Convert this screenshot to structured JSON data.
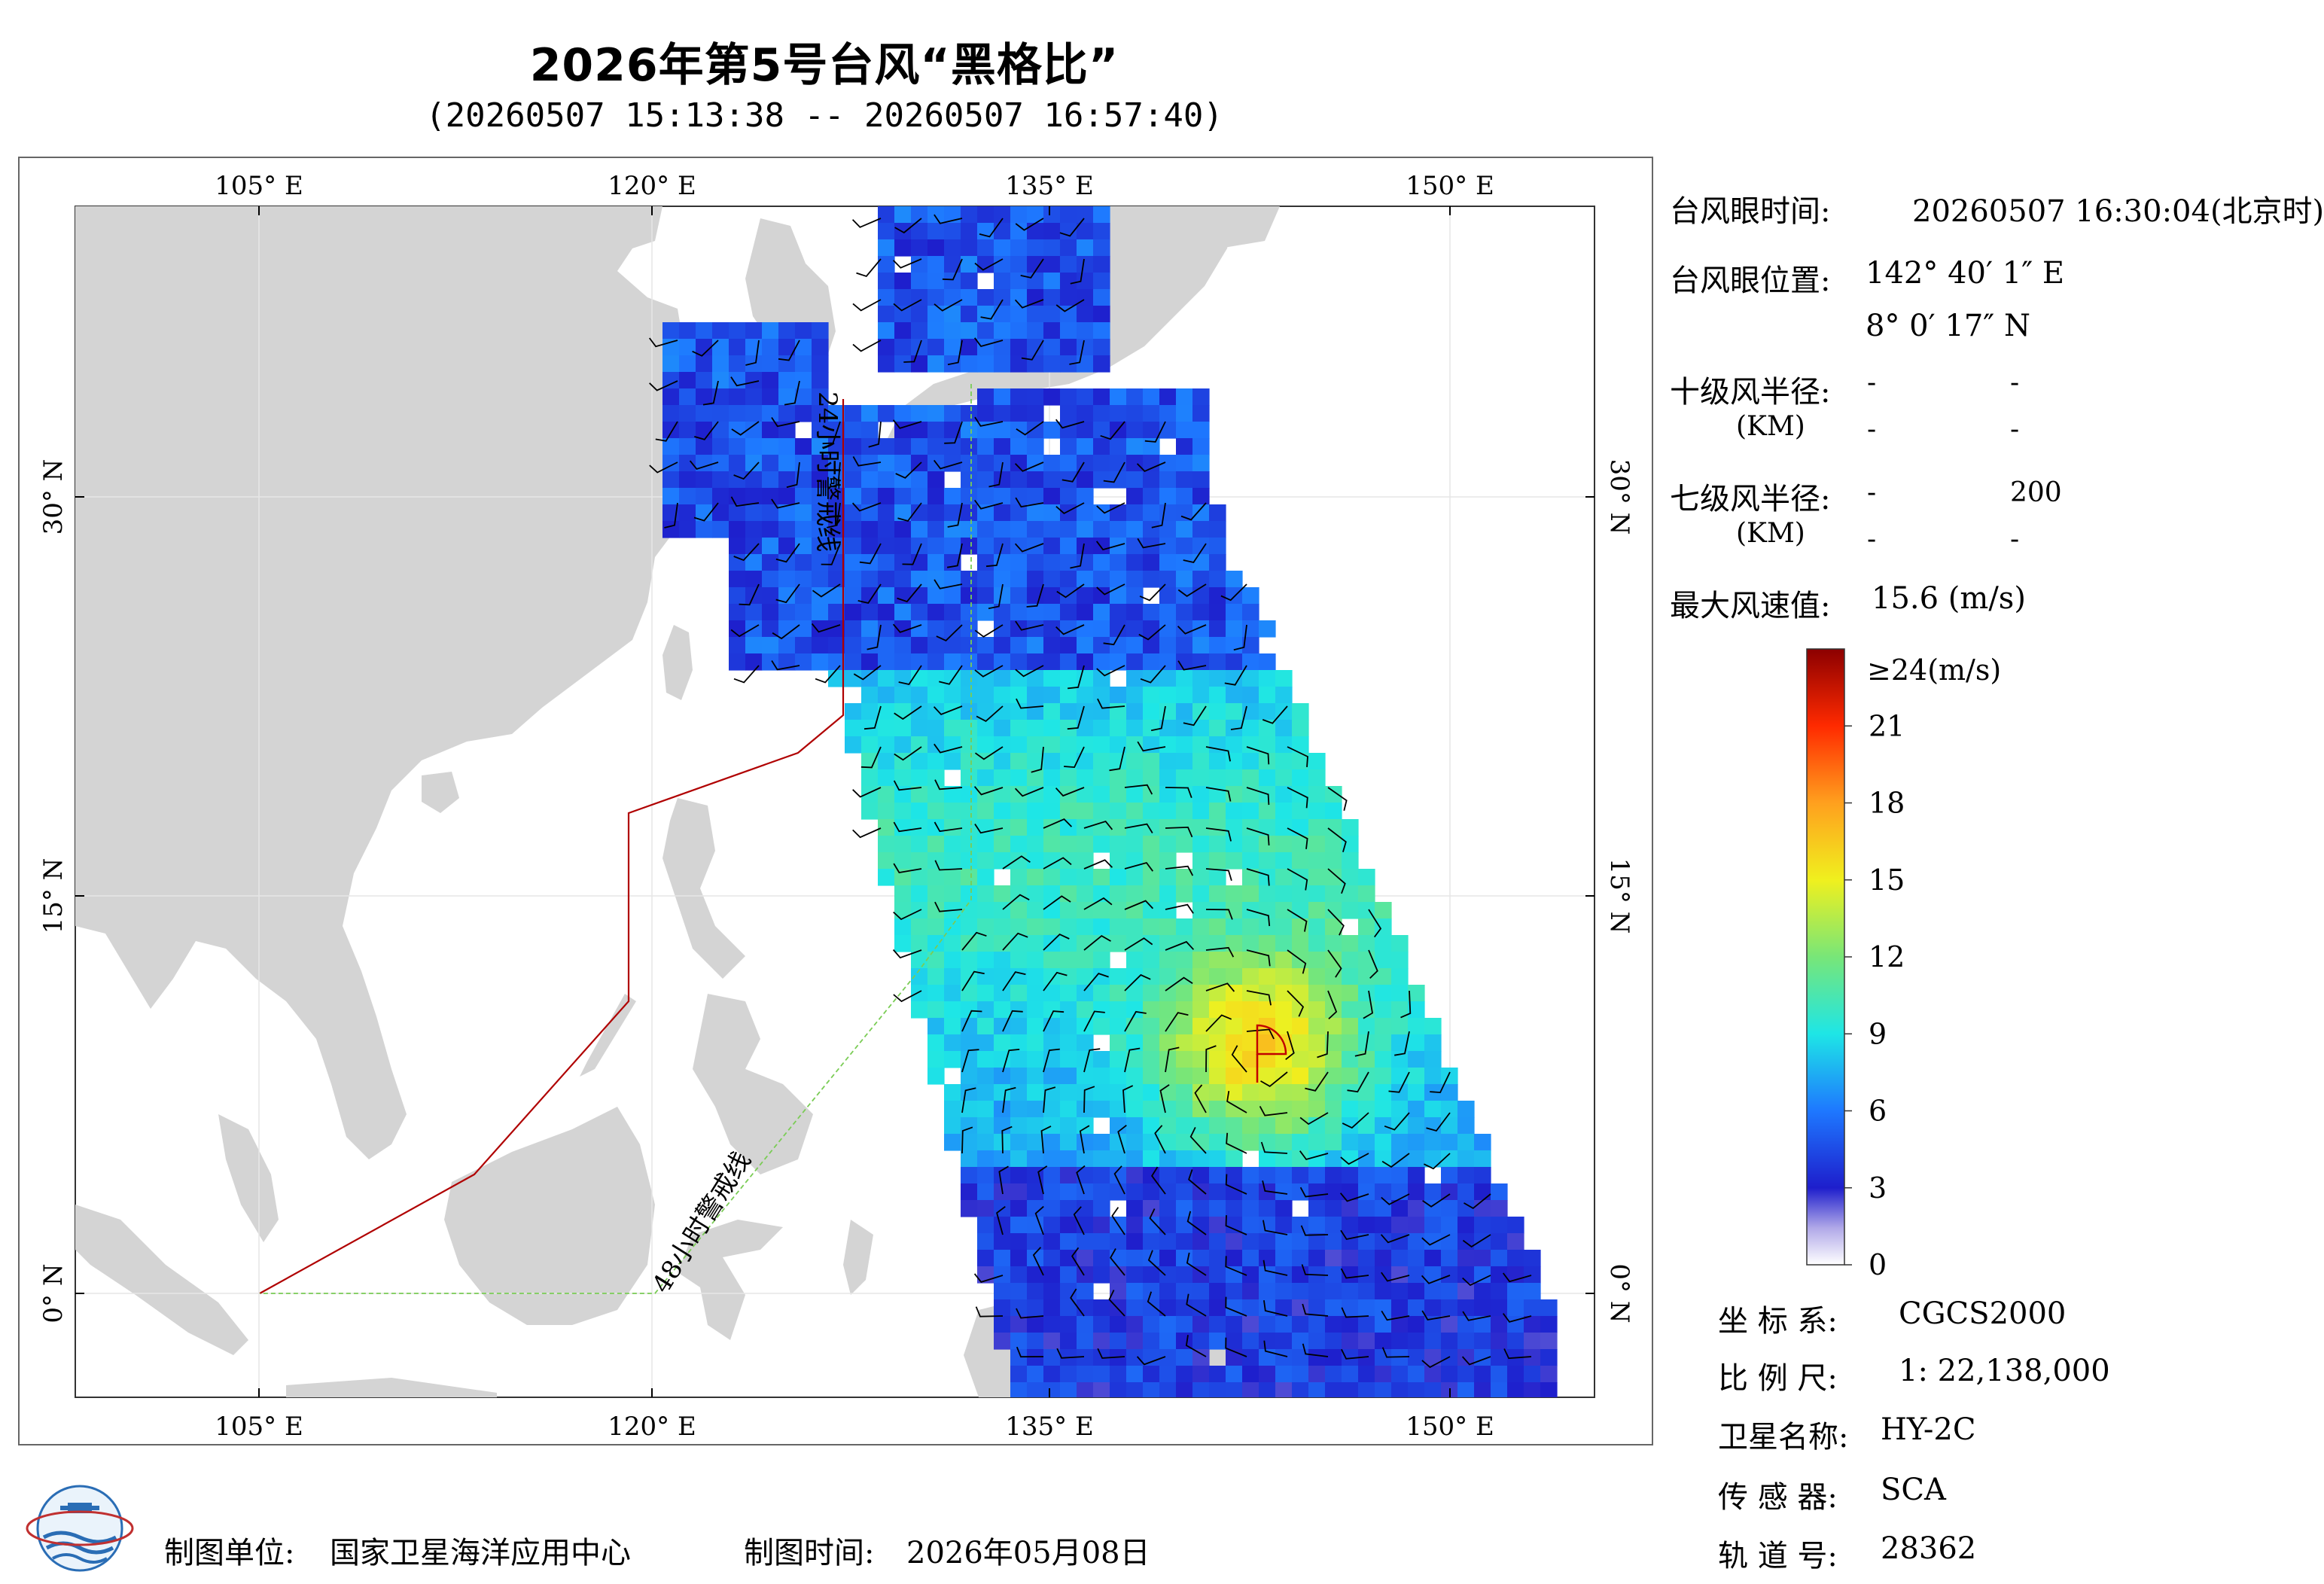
{
  "title": "2026年第5号台风“黑格比”",
  "subtitle": "(20260507 15:13:38 -- 20260507 16:57:40)",
  "map": {
    "lon_labels": [
      "105° E",
      "120° E",
      "135° E",
      "150° E"
    ],
    "lat_labels": [
      "30° N",
      "15° N",
      "0° N"
    ],
    "line_24h_label": "24小时警戒线",
    "line_48h_label": "48小时警戒线",
    "colors": {
      "land": "#d4d4d4",
      "sea": "#ffffff",
      "warning_24h": "#b00000",
      "warning_48h": "#7acc55",
      "typhoon_sector": "#c00000"
    }
  },
  "info": {
    "eye_time_label": "台风眼时间:",
    "eye_time_value": "20260507 16:30:04(北京时)",
    "eye_pos_label": "台风眼位置:",
    "eye_lon": "142° 40′ 1″ E",
    "eye_lat": "8° 0′ 17″ N",
    "r10_label": "十级风半径:",
    "r10_unit": "(KM)",
    "r10_values": [
      "-",
      "-",
      "-",
      "-"
    ],
    "r7_label": "七级风半径:",
    "r7_unit": "(KM)",
    "r7_values": [
      "-",
      "200",
      "-",
      "-"
    ],
    "max_wind_label": "最大风速值:",
    "max_wind_value": "15.6 (m/s)"
  },
  "colorbar": {
    "top_label": "≥24(m/s)",
    "ticks": [
      "21",
      "18",
      "15",
      "12",
      "9",
      "6",
      "3",
      "0"
    ],
    "tick_values": [
      21,
      18,
      15,
      12,
      9,
      6,
      3,
      0
    ],
    "max": 24
  },
  "meta": {
    "crs_label": "坐 标 系:",
    "crs_value": "CGCS2000",
    "scale_label": "比 例 尺:",
    "scale_value": "1: 22,138,000",
    "sat_label": "卫星名称:",
    "sat_value": "HY-2C",
    "sensor_label": "传 感 器:",
    "sensor_value": "SCA",
    "orbit_label": "轨 道 号:",
    "orbit_value": "28362"
  },
  "footer": {
    "org_label": "制图单位:",
    "org_value": "国家卫星海洋应用中心",
    "date_label": "制图时间:",
    "date_value": "2026年05月08日"
  }
}
